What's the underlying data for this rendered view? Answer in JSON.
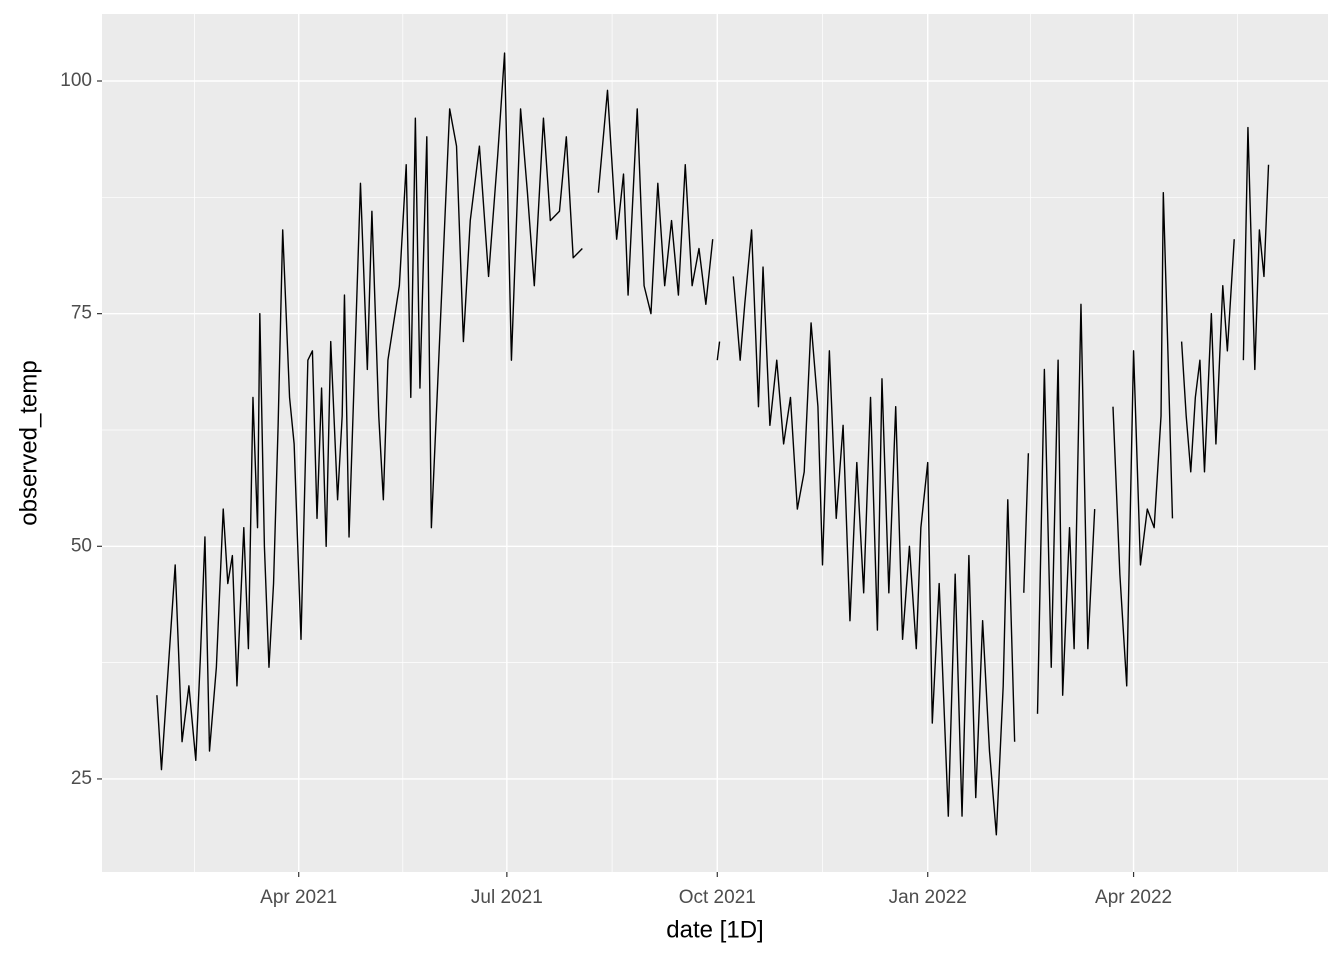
{
  "chart_data": {
    "type": "line",
    "x_label": "date [1D]",
    "y_label": "observed_temp",
    "xlim": [
      "2021-01-05",
      "2022-06-25"
    ],
    "ylim": [
      15,
      107.2
    ],
    "xticks": [
      {
        "value": "2021-04-01",
        "label": "Apr 2021"
      },
      {
        "value": "2021-07-01",
        "label": "Jul 2021"
      },
      {
        "value": "2021-10-01",
        "label": "Oct 2021"
      },
      {
        "value": "2022-01-01",
        "label": "Jan 2022"
      },
      {
        "value": "2022-04-01",
        "label": "Apr 2022"
      }
    ],
    "yticks": [
      25,
      50,
      75,
      100
    ],
    "grid": true,
    "x": [
      "2021-01-29",
      "2021-01-31",
      "2021-02-03",
      "2021-02-06",
      "2021-02-09",
      "2021-02-12",
      "2021-02-15",
      "2021-02-17",
      "2021-02-19",
      "2021-02-21",
      "2021-02-24",
      "2021-02-27",
      "2021-03-01",
      "2021-03-03",
      "2021-03-05",
      "2021-03-08",
      "2021-03-10",
      "2021-03-12",
      "2021-03-14",
      "2021-03-15",
      "2021-03-17",
      "2021-03-19",
      "2021-03-21",
      "2021-03-23",
      "2021-03-25",
      "2021-03-28",
      "2021-03-30",
      "2021-04-02",
      "2021-04-05",
      "2021-04-07",
      "2021-04-09",
      "2021-04-11",
      "2021-04-13",
      "2021-04-15",
      "2021-04-18",
      "2021-04-20",
      "2021-04-21",
      "2021-04-23",
      "2021-04-25",
      "2021-04-28",
      "2021-05-01",
      "2021-05-03",
      "2021-05-06",
      "2021-05-08",
      "2021-05-10",
      "2021-05-15",
      "2021-05-18",
      "2021-05-20",
      "2021-05-22",
      "2021-05-24",
      "2021-05-27",
      "2021-05-29",
      "2021-06-03",
      "2021-06-06",
      "2021-06-09",
      "2021-06-12",
      "2021-06-15",
      "2021-06-19",
      "2021-06-23",
      "2021-06-27",
      "2021-06-30",
      "2021-07-03",
      "2021-07-07",
      "2021-07-10",
      "2021-07-13",
      "2021-07-17",
      "2021-07-20",
      "2021-07-24",
      "2021-07-27",
      "2021-07-30",
      "2021-08-03",
      "2021-08-06",
      "2021-08-10",
      "2021-08-14",
      "2021-08-18",
      "2021-08-21",
      "2021-08-23",
      "2021-08-27",
      "2021-08-30",
      "2021-09-02",
      "2021-09-05",
      "2021-09-08",
      "2021-09-11",
      "2021-09-14",
      "2021-09-17",
      "2021-09-20",
      "2021-09-23",
      "2021-09-26",
      "2021-09-29",
      "2021-09-30",
      "2021-10-01",
      "2021-10-02",
      "2021-10-05",
      "2021-10-08",
      "2021-10-11",
      "2021-10-13",
      "2021-10-16",
      "2021-10-19",
      "2021-10-21",
      "2021-10-24",
      "2021-10-27",
      "2021-10-30",
      "2021-11-02",
      "2021-11-05",
      "2021-11-08",
      "2021-11-11",
      "2021-11-14",
      "2021-11-16",
      "2021-11-19",
      "2021-11-22",
      "2021-11-25",
      "2021-11-28",
      "2021-12-01",
      "2021-12-04",
      "2021-12-07",
      "2021-12-10",
      "2021-12-12",
      "2021-12-15",
      "2021-12-18",
      "2021-12-21",
      "2021-12-24",
      "2021-12-27",
      "2021-12-29",
      "2022-01-01",
      "2022-01-03",
      "2022-01-06",
      "2022-01-10",
      "2022-01-13",
      "2022-01-16",
      "2022-01-19",
      "2022-01-22",
      "2022-01-25",
      "2022-01-28",
      "2022-01-31",
      "2022-02-03",
      "2022-02-05",
      "2022-02-08",
      "2022-02-10",
      "2022-02-12",
      "2022-02-14",
      "2022-02-16",
      "2022-02-18",
      "2022-02-21",
      "2022-02-24",
      "2022-02-27",
      "2022-03-01",
      "2022-03-04",
      "2022-03-06",
      "2022-03-09",
      "2022-03-12",
      "2022-03-15",
      "2022-03-18",
      "2022-03-23",
      "2022-03-26",
      "2022-03-29",
      "2022-04-01",
      "2022-04-04",
      "2022-04-07",
      "2022-04-10",
      "2022-04-13",
      "2022-04-14",
      "2022-04-16",
      "2022-04-18",
      "2022-04-20",
      "2022-04-22",
      "2022-04-24",
      "2022-04-26",
      "2022-04-28",
      "2022-04-30",
      "2022-05-02",
      "2022-05-05",
      "2022-05-07",
      "2022-05-10",
      "2022-05-12",
      "2022-05-15",
      "2022-05-17",
      "2022-05-19",
      "2022-05-21",
      "2022-05-24",
      "2022-05-26",
      "2022-05-28",
      "2022-05-30"
    ],
    "series": [
      {
        "name": "observed_temp",
        "color": "#000000",
        "values": [
          34,
          26,
          37,
          48,
          29,
          35,
          27,
          38,
          51,
          28,
          37,
          54,
          46,
          49,
          35,
          52,
          39,
          66,
          52,
          75,
          50,
          37,
          46,
          63,
          84,
          66,
          61,
          40,
          70,
          71,
          53,
          67,
          50,
          72,
          55,
          64,
          77,
          51,
          66,
          89,
          69,
          86,
          64,
          55,
          70,
          78,
          91,
          66,
          96,
          67,
          94,
          52,
          80,
          97,
          93,
          72,
          85,
          93,
          79,
          92,
          103,
          70,
          97,
          88,
          78,
          96,
          85,
          86,
          94,
          81,
          82,
          null,
          88,
          99,
          83,
          90,
          77,
          97,
          78,
          75,
          89,
          78,
          85,
          77,
          91,
          78,
          82,
          76,
          83,
          null,
          70,
          72,
          null,
          79,
          70,
          76,
          84,
          65,
          80,
          63,
          70,
          61,
          66,
          54,
          58,
          74,
          65,
          48,
          71,
          53,
          63,
          42,
          59,
          45,
          66,
          41,
          68,
          45,
          65,
          40,
          50,
          39,
          52,
          59,
          31,
          46,
          21,
          47,
          21,
          49,
          23,
          42,
          28,
          19,
          35,
          55,
          29,
          null,
          45,
          60,
          null,
          32,
          69,
          37,
          70,
          34,
          52,
          39,
          76,
          39,
          54,
          null,
          65,
          47,
          35,
          71,
          48,
          54,
          52,
          64,
          88,
          71,
          53,
          null,
          72,
          64,
          58,
          66,
          70,
          58,
          75,
          61,
          78,
          71,
          83,
          null,
          70,
          95,
          69,
          84,
          79,
          91
        ]
      }
    ]
  }
}
